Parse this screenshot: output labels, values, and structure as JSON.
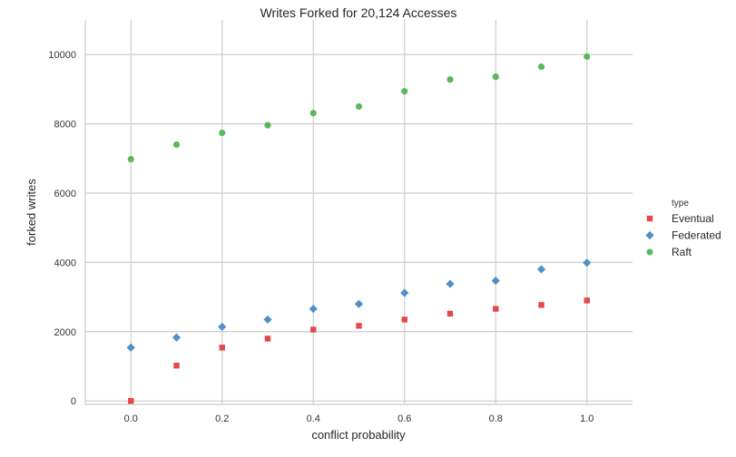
{
  "chart_data": {
    "type": "scatter",
    "title": "Writes Forked for 20,124 Accesses",
    "xlabel": "conflict probability",
    "ylabel": "forked writes",
    "xlim": [
      -0.1,
      1.1
    ],
    "ylim": [
      -100,
      11000
    ],
    "xticks": [
      "0.0",
      "0.2",
      "0.4",
      "0.6",
      "0.8",
      "1.0"
    ],
    "yticks": [
      "0",
      "2000",
      "4000",
      "6000",
      "8000",
      "10000"
    ],
    "grid": true,
    "legend": {
      "title": "type",
      "placement": "right"
    },
    "x": [
      0.0,
      0.1,
      0.2,
      0.3,
      0.4,
      0.5,
      0.6,
      0.7,
      0.8,
      0.9,
      1.0
    ],
    "series": [
      {
        "name": "Eventual",
        "marker": "square",
        "color": "#e5474b",
        "values": [
          0,
          1020,
          1540,
          1800,
          2060,
          2170,
          2350,
          2520,
          2660,
          2770,
          2900
        ]
      },
      {
        "name": "Federated",
        "marker": "diamond",
        "color": "#4f90c8",
        "values": [
          1540,
          1830,
          2140,
          2350,
          2660,
          2800,
          3120,
          3380,
          3470,
          3800,
          3990
        ]
      },
      {
        "name": "Raft",
        "marker": "circle",
        "color": "#5cb85c",
        "values": [
          6980,
          7400,
          7740,
          7960,
          8310,
          8500,
          8940,
          9280,
          9360,
          9650,
          9940
        ]
      }
    ]
  }
}
